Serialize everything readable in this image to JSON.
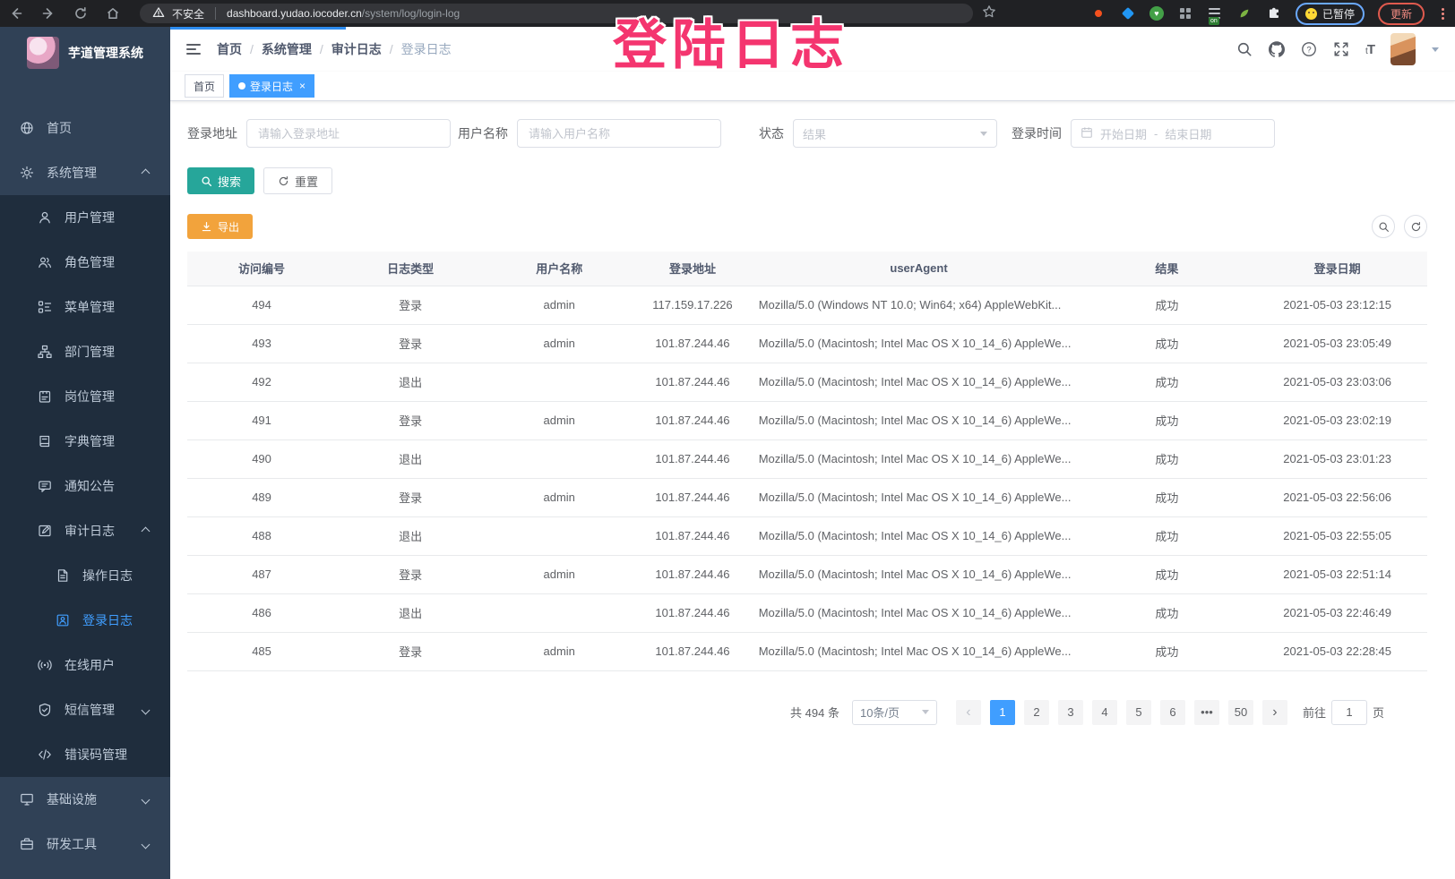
{
  "colors": {
    "accent": "#409EFF",
    "search_button": "#26A69A",
    "export_button": "#F2A33C",
    "annotation_text": "#F4356F",
    "progress_bar": "#2D8CF0",
    "sidebar_bg": "#304156",
    "submenu_bg": "#1F2D3D"
  },
  "browser": {
    "security_label": "不安全",
    "url_domain": "dashboard.yudao.iocoder.cn",
    "url_path": "/system/log/login-log",
    "extension_on_badge": "on",
    "paused_badge_label": "已暂停",
    "update_button_label": "更新"
  },
  "annotation": {
    "text": "登陆日志"
  },
  "sidebar": {
    "logo_title": "芋道管理系统",
    "menu": [
      {
        "id": "home",
        "label": "首页",
        "icon": "home-icon",
        "level": 1
      },
      {
        "id": "system",
        "label": "系统管理",
        "icon": "gear-icon",
        "level": 1,
        "arrow": "up"
      },
      {
        "id": "user",
        "label": "用户管理",
        "icon": "user-icon",
        "level": 2
      },
      {
        "id": "role",
        "label": "角色管理",
        "icon": "users-icon",
        "level": 2
      },
      {
        "id": "menu",
        "label": "菜单管理",
        "icon": "menu-tree-icon",
        "level": 2
      },
      {
        "id": "dept",
        "label": "部门管理",
        "icon": "org-icon",
        "level": 2
      },
      {
        "id": "post",
        "label": "岗位管理",
        "icon": "badge-icon",
        "level": 2
      },
      {
        "id": "dict",
        "label": "字典管理",
        "icon": "book-icon",
        "level": 2
      },
      {
        "id": "notice",
        "label": "通知公告",
        "icon": "megaphone-icon",
        "level": 2
      },
      {
        "id": "audit-log",
        "label": "审计日志",
        "icon": "edit-icon",
        "level": 2,
        "arrow": "up"
      },
      {
        "id": "operate-log",
        "label": "操作日志",
        "icon": "doc-icon",
        "level": 3
      },
      {
        "id": "login-log",
        "label": "登录日志",
        "icon": "login-log-icon",
        "level": 3,
        "active": true
      },
      {
        "id": "online-user",
        "label": "在线用户",
        "icon": "online-icon",
        "level": 2
      },
      {
        "id": "sms",
        "label": "短信管理",
        "icon": "shield-icon",
        "level": 2,
        "arrow": "down"
      },
      {
        "id": "errcode",
        "label": "错误码管理",
        "icon": "code-icon",
        "level": 2
      },
      {
        "id": "infra",
        "label": "基础设施",
        "icon": "monitor-icon",
        "level": 1,
        "arrow": "down"
      },
      {
        "id": "devtool",
        "label": "研发工具",
        "icon": "tool-icon",
        "level": 1,
        "arrow": "down"
      }
    ]
  },
  "navbar": {
    "breadcrumb": [
      "首页",
      "系统管理",
      "审计日志",
      "登录日志"
    ]
  },
  "tabs": [
    {
      "label": "首页",
      "active": false,
      "closable": false
    },
    {
      "label": "登录日志",
      "active": true,
      "closable": true
    }
  ],
  "filters": {
    "address_label": "登录地址",
    "address_placeholder": "请输入登录地址",
    "username_label": "用户名称",
    "username_placeholder": "请输入用户名称",
    "status_label": "状态",
    "status_placeholder": "结果",
    "time_label": "登录时间",
    "date_start": "开始日期",
    "date_sep": "-",
    "date_end": "结束日期",
    "search_label": "搜索",
    "reset_label": "重置",
    "export_label": "导出"
  },
  "table": {
    "columns": [
      "访问编号",
      "日志类型",
      "用户名称",
      "登录地址",
      "userAgent",
      "结果",
      "登录日期"
    ],
    "rows": [
      [
        "494",
        "登录",
        "admin",
        "117.159.17.226",
        "Mozilla/5.0 (Windows NT 10.0; Win64; x64) AppleWebKit...",
        "成功",
        "2021-05-03 23:12:15"
      ],
      [
        "493",
        "登录",
        "admin",
        "101.87.244.46",
        "Mozilla/5.0 (Macintosh; Intel Mac OS X 10_14_6) AppleWe...",
        "成功",
        "2021-05-03 23:05:49"
      ],
      [
        "492",
        "退出",
        "",
        "101.87.244.46",
        "Mozilla/5.0 (Macintosh; Intel Mac OS X 10_14_6) AppleWe...",
        "成功",
        "2021-05-03 23:03:06"
      ],
      [
        "491",
        "登录",
        "admin",
        "101.87.244.46",
        "Mozilla/5.0 (Macintosh; Intel Mac OS X 10_14_6) AppleWe...",
        "成功",
        "2021-05-03 23:02:19"
      ],
      [
        "490",
        "退出",
        "",
        "101.87.244.46",
        "Mozilla/5.0 (Macintosh; Intel Mac OS X 10_14_6) AppleWe...",
        "成功",
        "2021-05-03 23:01:23"
      ],
      [
        "489",
        "登录",
        "admin",
        "101.87.244.46",
        "Mozilla/5.0 (Macintosh; Intel Mac OS X 10_14_6) AppleWe...",
        "成功",
        "2021-05-03 22:56:06"
      ],
      [
        "488",
        "退出",
        "",
        "101.87.244.46",
        "Mozilla/5.0 (Macintosh; Intel Mac OS X 10_14_6) AppleWe...",
        "成功",
        "2021-05-03 22:55:05"
      ],
      [
        "487",
        "登录",
        "admin",
        "101.87.244.46",
        "Mozilla/5.0 (Macintosh; Intel Mac OS X 10_14_6) AppleWe...",
        "成功",
        "2021-05-03 22:51:14"
      ],
      [
        "486",
        "退出",
        "",
        "101.87.244.46",
        "Mozilla/5.0 (Macintosh; Intel Mac OS X 10_14_6) AppleWe...",
        "成功",
        "2021-05-03 22:46:49"
      ],
      [
        "485",
        "登录",
        "admin",
        "101.87.244.46",
        "Mozilla/5.0 (Macintosh; Intel Mac OS X 10_14_6) AppleWe...",
        "成功",
        "2021-05-03 22:28:45"
      ]
    ]
  },
  "pagination": {
    "total": "共 494 条",
    "page_size": "10条/页",
    "pages": [
      "1",
      "2",
      "3",
      "4",
      "5",
      "6",
      "•••",
      "50"
    ],
    "active_page": "1",
    "goto_label": "前往",
    "goto_value": "1",
    "goto_unit": "页"
  }
}
